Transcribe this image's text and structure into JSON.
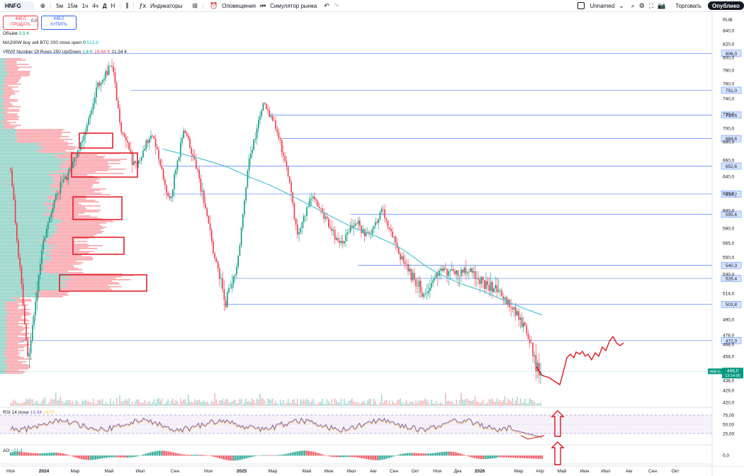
{
  "toolbar": {
    "ticker": "HNFG",
    "intervals": [
      "5м",
      "15м",
      "1ч",
      "4ч",
      "Д",
      "Н"
    ],
    "indicators": "Индикаторы",
    "alerts": "Оповещения",
    "replay": "Симулятор рынка",
    "layout_name": "Unnamed",
    "trade": "Торговать",
    "publish": "Опублико"
  },
  "trade_panel": {
    "sell_price": "446,0",
    "sell_label": "ПРОДАТЬ",
    "spread": "0,0",
    "buy_price": "446,0",
    "buy_label": "КУПИТЬ"
  },
  "legend": {
    "volume_name": "Объём",
    "volume_value": "3,5 K",
    "ma_name": "MA200W buy sell BTC 200 close open 0",
    "ma_value": "513,9",
    "vrvp_name": "VRVP Number Of Rows 250 Up/Down",
    "vrvp_up": "1,6 K",
    "vrvp_down": "19,94 K",
    "vrvp_total": "21,54 K",
    "rsi_name": "RSI 14 close",
    "rsi_value": "19,94",
    "rsi_ma": "18,05",
    "ao_name": "AO",
    "ao_value": "−21,3"
  },
  "price_axis": {
    "currency": "RUB",
    "ticks": [
      "840,0",
      "820,0",
      "800,0",
      "780,0",
      "760,0",
      "740,0",
      "720,0",
      "700,0",
      "680,0",
      "660,0",
      "640,0",
      "620,0",
      "600,0",
      "580,0",
      "565,0",
      "550,0",
      "530,0",
      "514,0",
      "490,0",
      "478,0",
      "468,0",
      "458,0",
      "448,0",
      "438,0",
      "429,0",
      "420,0"
    ],
    "levels": [
      "806,0",
      "751,0",
      "718,6",
      "684,6",
      "652,6",
      "619,2",
      "595,6",
      "540,3",
      "526,4",
      "503,8",
      "472,0"
    ],
    "current_ticker": "HNFG",
    "current_price": "446,0",
    "countdown": "13:14:00"
  },
  "rsi_axis": [
    "75,00",
    "50,00",
    "25,00"
  ],
  "ao_axis": [
    "0,0"
  ],
  "time_axis": [
    "Ноя",
    "2024",
    "Мар",
    "Май",
    "Июл",
    "Сен",
    "Ноя",
    "2025",
    "Мар",
    "Май",
    "Июн",
    "Июл",
    "Авг",
    "Сен",
    "Окт",
    "Ноя",
    "Дек",
    "2026",
    "Мар",
    "Апр",
    "Май",
    "Июн",
    "Июл",
    "Авг",
    "Сен",
    "Окт"
  ],
  "colors": {
    "up": "#089981",
    "down": "#f23645",
    "ma": "#4dc3d1",
    "level": "#2962ff",
    "annotation": "#e0141e",
    "rsi": "#7e57c2"
  }
}
